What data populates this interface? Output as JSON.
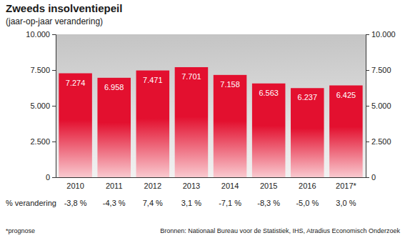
{
  "chart_data": {
    "type": "bar",
    "title": "Zweeds insolventiepeil",
    "subtitle": "(jaar-op-jaar verandering)",
    "categories": [
      "2010",
      "2011",
      "2012",
      "2013",
      "2014",
      "2015",
      "2016",
      "2017*"
    ],
    "values": [
      7274,
      6958,
      7471,
      7701,
      7158,
      6563,
      6237,
      6425
    ],
    "value_labels": [
      "7.274",
      "6.958",
      "7.471",
      "7.701",
      "7.158",
      "6.563",
      "6.237",
      "6.425"
    ],
    "data_labels": true,
    "color": "#e3102f",
    "grid": false,
    "ylim": [
      0,
      10000
    ],
    "yticks": [
      0,
      {
        "value": 2500,
        "label": "2.500"
      },
      {
        "value": 5000,
        "label": "5.000"
      },
      {
        "value": 7500,
        "label": "7.500"
      },
      {
        "value": 10000,
        "label": "10.000"
      }
    ],
    "y2lim": [
      0,
      10000
    ],
    "y2ticks": [
      0,
      {
        "value": 2500,
        "label": "2.500"
      },
      {
        "value": 5000,
        "label": "5.000"
      },
      {
        "value": 7500,
        "label": "7.500"
      },
      {
        "value": 10000,
        "label": "10.000"
      }
    ],
    "change_title": "% verandering",
    "change_labels": [
      "-3,8 %",
      "-4,3 %",
      "7,4 %",
      "3,1 %",
      "-7,1 %",
      "-8,3 %",
      "-5,0 %",
      "3,0 %"
    ],
    "note": "*prognose",
    "source": "Bronnen: Nationaal Bureau voor de Statistiek, IHS, Atradius Economisch Onderzoek"
  }
}
